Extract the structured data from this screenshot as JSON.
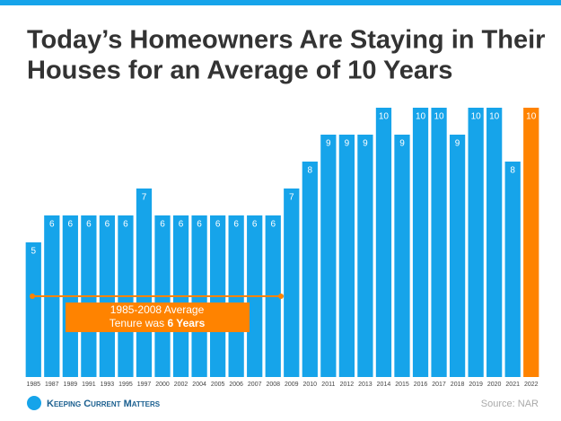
{
  "chart_data": {
    "type": "bar",
    "title_lines": [
      "Today’s Homeowners Are Staying in Their",
      "Houses for an Average of 10 Years"
    ],
    "categories": [
      "1985",
      "1987",
      "1989",
      "1991",
      "1993",
      "1995",
      "1997",
      "2000",
      "2002",
      "2004",
      "2005",
      "2006",
      "2007",
      "2008",
      "2009",
      "2010",
      "2011",
      "2012",
      "2013",
      "2014",
      "2015",
      "2016",
      "2017",
      "2018",
      "2019",
      "2020",
      "2021",
      "2022"
    ],
    "values": [
      5,
      6,
      6,
      6,
      6,
      6,
      7,
      6,
      6,
      6,
      6,
      6,
      6,
      6,
      7,
      8,
      9,
      9,
      9,
      10,
      9,
      10,
      10,
      9,
      10,
      10,
      8,
      10
    ],
    "colors": [
      "#16a4ea",
      "#16a4ea",
      "#16a4ea",
      "#16a4ea",
      "#16a4ea",
      "#16a4ea",
      "#16a4ea",
      "#16a4ea",
      "#16a4ea",
      "#16a4ea",
      "#16a4ea",
      "#16a4ea",
      "#16a4ea",
      "#16a4ea",
      "#16a4ea",
      "#16a4ea",
      "#16a4ea",
      "#16a4ea",
      "#16a4ea",
      "#16a4ea",
      "#16a4ea",
      "#16a4ea",
      "#16a4ea",
      "#16a4ea",
      "#16a4ea",
      "#16a4ea",
      "#16a4ea",
      "#ff8300"
    ],
    "ylim": [
      0,
      10
    ],
    "annotation": {
      "line1": "1985-2008 Average",
      "line2": "Tenure was ",
      "bold": "6 Years"
    },
    "logo": "Keeping Current Matters",
    "source": "Source: NAR"
  }
}
